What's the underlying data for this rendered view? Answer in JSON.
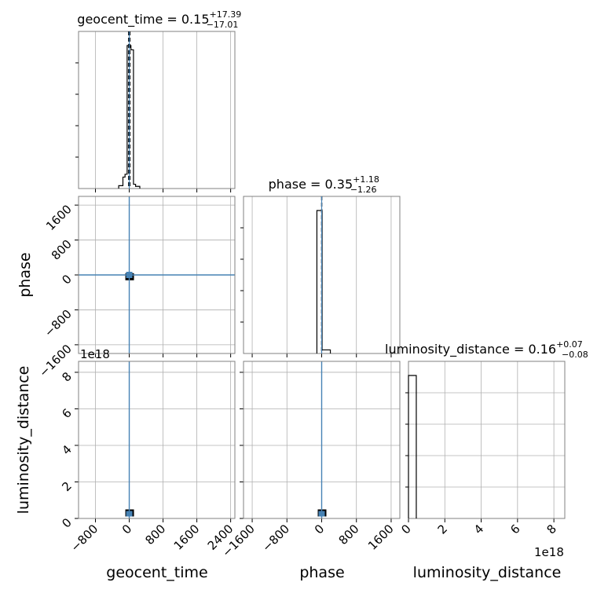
{
  "figure": {
    "type": "corner-plot"
  },
  "chart_data": [
    {
      "panel": "geocent_time-histogram",
      "type": "histogram",
      "title": {
        "param": "geocent_time",
        "median": "0.15",
        "plus": "+17.39",
        "minus": "−17.01"
      },
      "xlim": [
        -1200,
        2500
      ],
      "xticks": [
        "−800",
        "0",
        "800",
        "1600",
        "2400"
      ],
      "bins": [
        {
          "x0": -250,
          "x1": -150,
          "h": 0.02
        },
        {
          "x0": -150,
          "x1": -100,
          "h": 0.08
        },
        {
          "x0": -100,
          "x1": -50,
          "h": 0.1
        },
        {
          "x0": -50,
          "x1": 0,
          "h": 1.0
        },
        {
          "x0": 0,
          "x1": 40,
          "h": 1.0
        },
        {
          "x0": 40,
          "x1": 100,
          "h": 0.97
        },
        {
          "x0": 100,
          "x1": 150,
          "h": 0.03
        },
        {
          "x0": 150,
          "x1": 250,
          "h": 0.015
        }
      ],
      "median_value": 0.15,
      "q_lo": -16.86,
      "q_hi": 17.54,
      "truth": 0
    },
    {
      "panel": "phase-vs-geocent_time",
      "type": "scatter",
      "xlim": [
        -1200,
        2500
      ],
      "ylim": [
        -1800,
        1800
      ],
      "xticks": [
        "−800",
        "0",
        "800",
        "1600",
        "2400"
      ],
      "yticks": [
        "−1600",
        "−800",
        "0",
        "800",
        "1600"
      ],
      "ylabel": "phase",
      "truth": {
        "x": 0,
        "y": 0
      },
      "density_blob": {
        "x": 0,
        "y": -50
      }
    },
    {
      "panel": "phase-histogram",
      "type": "histogram",
      "title": {
        "param": "phase",
        "median": "0.35",
        "plus": "+1.18",
        "minus": "−1.26"
      },
      "xlim": [
        -1800,
        1800
      ],
      "xticks": [
        "−1600",
        "−800",
        "0",
        "800",
        "1600"
      ],
      "bins": [
        {
          "x0": -110,
          "x1": 10,
          "h": 1.0
        },
        {
          "x0": 10,
          "x1": 200,
          "h": 0.025
        }
      ],
      "median_value": 0.35,
      "q_lo": -0.91,
      "q_hi": 1.53,
      "truth": 0
    },
    {
      "panel": "luminosity_distance-vs-geocent_time",
      "type": "scatter",
      "xlim": [
        -1200,
        2500
      ],
      "ylim": [
        0,
        8.6
      ],
      "xticks": [
        "−800",
        "0",
        "800",
        "1600",
        "2400"
      ],
      "yticks": [
        "0",
        "2",
        "4",
        "6",
        "8"
      ],
      "offset_label": "1e18",
      "ylabel": "luminosity_distance",
      "xlabel": "geocent_time",
      "truth": {
        "x": 0
      },
      "density_blob": {
        "x": 0,
        "y": 0.28
      }
    },
    {
      "panel": "luminosity_distance-vs-phase",
      "type": "scatter",
      "xlim": [
        -1800,
        1800
      ],
      "ylim": [
        0,
        8.6
      ],
      "xticks": [
        "−1600",
        "−800",
        "0",
        "800",
        "1600"
      ],
      "xlabel": "phase",
      "truth": {
        "x": 0
      },
      "density_blob": {
        "x": 0,
        "y": 0.28
      }
    },
    {
      "panel": "luminosity_distance-histogram",
      "type": "histogram",
      "title": {
        "param": "luminosity_distance",
        "median": "0.16",
        "plus": "+0.07",
        "minus": "−0.08"
      },
      "xlim": [
        0,
        8.6
      ],
      "xticks": [
        "0",
        "2",
        "4",
        "6",
        "8"
      ],
      "offset_label": "1e18",
      "xlabel": "luminosity_distance",
      "bins": [
        {
          "x0": 0,
          "x1": 0.43,
          "h": 1.0
        }
      ]
    }
  ],
  "colors": {
    "truth": "#4682b4",
    "hist": "#000000",
    "grid": "#b0b0b0",
    "axes": "#808080"
  }
}
